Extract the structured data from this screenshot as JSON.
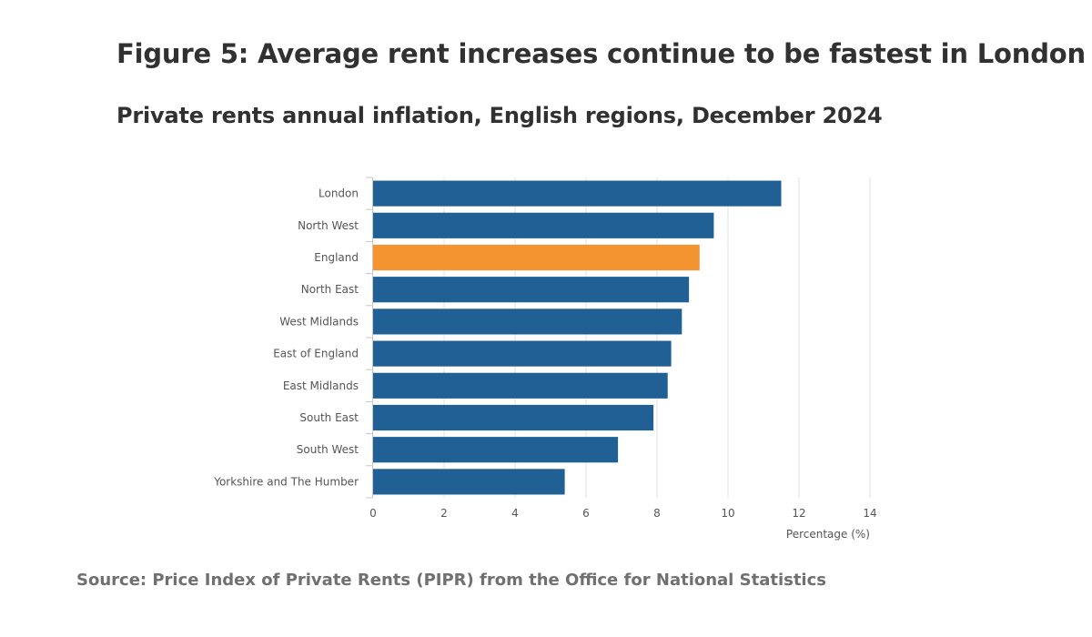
{
  "figure": {
    "title": "Figure 5: Average rent increases continue to be fastest in London",
    "subtitle": "Private rents annual inflation, English regions, December 2024",
    "source": "Source: Price Index of Private Rents (PIPR) from the Office for National Statistics"
  },
  "colors": {
    "bar": "#206095",
    "highlight": "#F39431",
    "grid": "#e0e0e0",
    "axis": "#c7c7c7"
  },
  "chart_data": {
    "type": "bar",
    "orientation": "horizontal",
    "title": "Private rents annual inflation, English regions, December 2024",
    "xlabel": "Percentage (%)",
    "ylabel": "",
    "xlim": [
      0,
      14
    ],
    "xticks": [
      0,
      2,
      4,
      6,
      8,
      10,
      12,
      14
    ],
    "grid": true,
    "categories": [
      "London",
      "North West",
      "England",
      "North East",
      "West Midlands",
      "East of England",
      "East Midlands",
      "South East",
      "South West",
      "Yorkshire and The Humber"
    ],
    "values": [
      11.5,
      9.6,
      9.2,
      8.9,
      8.7,
      8.4,
      8.3,
      7.9,
      6.9,
      5.4
    ],
    "highlight": "England"
  }
}
